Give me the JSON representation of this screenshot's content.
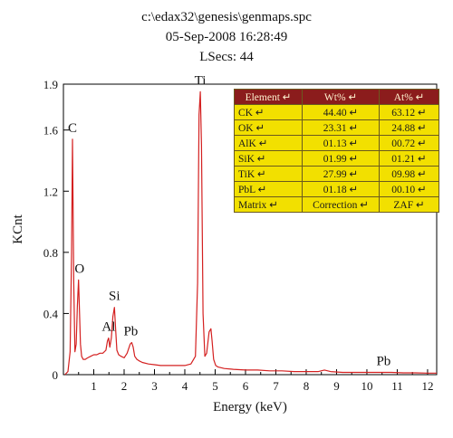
{
  "header": {
    "path": "c:\\edax32\\genesis\\genmaps.spc",
    "timestamp": "05-Sep-2008 16:28:49",
    "lsecs": "LSecs: 44"
  },
  "table": {
    "headers": [
      "Element",
      "Wt%",
      "At%"
    ],
    "rows": [
      [
        "CK",
        "44.40",
        "63.12"
      ],
      [
        "OK",
        "23.31",
        "24.88"
      ],
      [
        "AlK",
        "01.13",
        "00.72"
      ],
      [
        "SiK",
        "01.99",
        "01.21"
      ],
      [
        "TiK",
        "27.99",
        "09.98"
      ],
      [
        "PbL",
        "01.18",
        "00.10"
      ],
      [
        "Matrix",
        "Correction",
        "ZAF"
      ]
    ]
  },
  "chart_data": {
    "type": "line",
    "title": "",
    "xlabel": "Energy (keV)",
    "ylabel": "KCnt",
    "xlim": [
      0,
      12.3
    ],
    "ylim": [
      0,
      1.9
    ],
    "x_ticks": [
      1,
      2,
      3,
      4,
      5,
      6,
      7,
      8,
      9,
      10,
      11,
      12
    ],
    "y_ticks": [
      0,
      0.4,
      0.8,
      1.2,
      1.6,
      1.9
    ],
    "color": "#d42020",
    "grid": false,
    "series": [
      {
        "x": [
          0.05,
          0.15,
          0.22,
          0.27,
          0.3,
          0.34,
          0.38,
          0.42,
          0.46,
          0.5,
          0.53,
          0.56,
          0.6,
          0.65,
          0.72,
          0.8,
          0.9,
          1.0,
          1.1,
          1.2,
          1.3,
          1.4,
          1.45,
          1.49,
          1.53,
          1.58,
          1.63,
          1.68,
          1.72,
          1.76,
          1.82,
          1.9,
          2.0,
          2.1,
          2.2,
          2.25,
          2.3,
          2.35,
          2.42,
          2.5,
          2.6,
          2.8,
          3.0,
          3.2,
          3.4,
          3.6,
          3.8,
          4.0,
          4.2,
          4.35,
          4.42,
          4.47,
          4.51,
          4.55,
          4.6,
          4.66,
          4.72,
          4.8,
          4.86,
          4.9,
          4.95,
          5.02,
          5.1,
          5.3,
          5.6,
          6.0,
          6.4,
          6.8,
          7.2,
          7.6,
          8.0,
          8.4,
          8.6,
          8.8,
          9.2,
          9.6,
          10.0,
          10.4,
          10.8,
          11.2,
          11.6,
          12.0,
          12.3
        ],
        "y": [
          0.0,
          0.02,
          0.15,
          0.8,
          1.54,
          0.6,
          0.15,
          0.2,
          0.45,
          0.62,
          0.4,
          0.2,
          0.12,
          0.1,
          0.1,
          0.11,
          0.12,
          0.13,
          0.13,
          0.14,
          0.14,
          0.16,
          0.22,
          0.24,
          0.18,
          0.24,
          0.38,
          0.44,
          0.3,
          0.16,
          0.13,
          0.12,
          0.11,
          0.14,
          0.2,
          0.21,
          0.18,
          0.12,
          0.1,
          0.09,
          0.08,
          0.07,
          0.065,
          0.06,
          0.06,
          0.06,
          0.06,
          0.06,
          0.07,
          0.12,
          0.6,
          1.7,
          1.85,
          1.5,
          0.4,
          0.12,
          0.14,
          0.28,
          0.3,
          0.22,
          0.1,
          0.06,
          0.05,
          0.04,
          0.035,
          0.03,
          0.03,
          0.025,
          0.025,
          0.02,
          0.02,
          0.02,
          0.03,
          0.02,
          0.015,
          0.015,
          0.015,
          0.015,
          0.015,
          0.012,
          0.012,
          0.01,
          0.01
        ]
      }
    ],
    "peak_labels": [
      {
        "text": "C",
        "x": 0.3,
        "y": 1.54
      },
      {
        "text": "O",
        "x": 0.53,
        "y": 0.62
      },
      {
        "text": "Al",
        "x": 1.49,
        "y": 0.24
      },
      {
        "text": "Si",
        "x": 1.68,
        "y": 0.44
      },
      {
        "text": "Pb",
        "x": 2.22,
        "y": 0.21
      },
      {
        "text": "Ti",
        "x": 4.51,
        "y": 1.85
      },
      {
        "text": "Pb",
        "x": 10.55,
        "y": 0.015
      }
    ]
  }
}
